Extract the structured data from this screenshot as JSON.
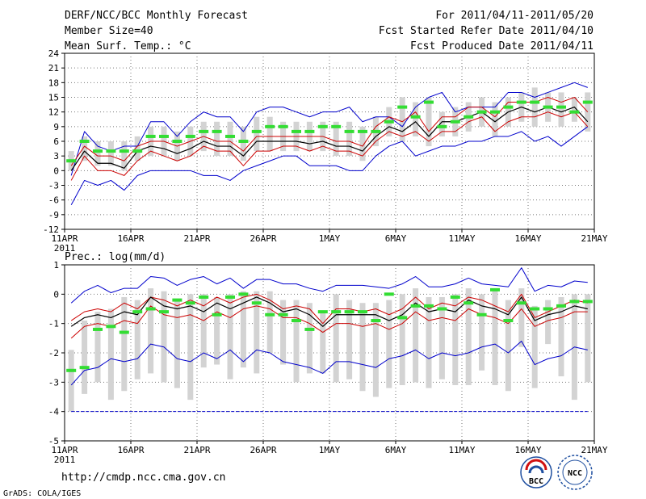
{
  "header": {
    "title": "DERF/NCC/BCC Monthly Forecast",
    "member_size": "Member Size=40",
    "variable": "Mean Surf. Temp.: °C",
    "period": "For 2011/04/11-2011/05/20",
    "started": "Fcst Started Refer Date 2011/04/10",
    "produced": "Fcst Produced Date 2011/04/11"
  },
  "footer": {
    "url": "http://cmdp.ncc.cma.gov.cn",
    "credit": "GrADS: COLA/IGES",
    "logo_bcc": "BCC",
    "logo_ncc": "NCC"
  },
  "colors": {
    "envelope": "#0000cc",
    "spread": "#cc0000",
    "mean": "#000000",
    "clim": "#33dd33",
    "box": "#d3d3d3"
  },
  "x_ticks": [
    "11APR",
    "16APR",
    "21APR",
    "26APR",
    "1MAY",
    "6MAY",
    "11MAY",
    "16MAY",
    "21MAY"
  ],
  "x_year": "2011",
  "chart_data": [
    {
      "type": "line",
      "title": "Mean Surf. Temp.: °C",
      "ylim": [
        -12,
        24
      ],
      "yticks": [
        -12,
        -9,
        -6,
        -3,
        0,
        3,
        6,
        9,
        12,
        15,
        18,
        21,
        24
      ],
      "ytick_labels": [
        "-12",
        "-9",
        "-6",
        "-3",
        "0",
        "3",
        "6",
        "9",
        "12",
        "15",
        "18",
        "21",
        "24"
      ],
      "days": 40,
      "series": [
        {
          "name": "max",
          "values": [
            -1,
            8,
            5,
            4,
            5,
            5,
            10,
            10,
            7,
            10,
            12,
            11,
            11,
            8,
            12,
            13,
            13,
            12,
            11,
            12,
            12,
            13,
            10,
            11,
            11,
            9,
            13,
            15,
            16,
            12,
            13,
            13,
            13,
            16,
            16,
            15,
            16,
            17,
            18,
            17
          ]
        },
        {
          "name": "upper",
          "values": [
            1,
            5,
            3,
            3,
            2,
            5,
            6,
            6,
            5,
            6,
            7,
            6,
            6,
            4,
            7,
            7,
            7,
            7,
            7,
            7,
            6,
            6,
            5,
            9,
            11,
            10,
            12,
            8,
            11,
            11,
            13,
            13,
            11,
            14,
            14,
            14,
            15,
            14,
            15,
            12
          ]
        },
        {
          "name": "mean",
          "values": [
            0,
            4,
            1.5,
            1.5,
            0.5,
            4,
            5,
            4.5,
            3.5,
            4.5,
            6,
            5,
            5,
            3,
            6,
            6,
            6,
            6,
            5.5,
            6,
            5,
            5,
            4,
            7,
            9,
            8,
            10,
            7,
            10,
            10,
            11,
            12,
            10,
            12,
            13,
            12,
            13,
            12,
            13,
            10
          ]
        },
        {
          "name": "lower",
          "values": [
            -2,
            3,
            0,
            0,
            -1,
            2,
            4,
            3,
            2,
            3,
            5,
            4,
            4,
            1,
            4,
            4,
            5,
            5,
            4,
            5,
            4,
            4,
            3,
            6,
            8,
            7,
            8,
            6,
            8,
            8,
            10,
            11,
            8,
            10,
            11,
            11,
            12,
            11,
            12,
            9
          ]
        },
        {
          "name": "min",
          "values": [
            -7,
            -2,
            -3,
            -2,
            -4,
            -1,
            0,
            0,
            0,
            0,
            -1,
            -1,
            -2,
            0,
            1,
            2,
            3,
            3,
            1,
            1,
            1,
            0,
            0,
            3,
            5,
            6,
            3,
            4,
            5,
            5,
            6,
            6,
            7,
            7,
            8,
            6,
            7,
            5,
            7,
            9
          ]
        },
        {
          "name": "clim",
          "values": [
            2,
            6,
            4,
            4,
            4,
            4,
            7,
            7,
            6,
            7,
            8,
            8,
            7,
            6,
            8,
            9,
            9,
            8,
            8,
            9,
            9,
            8,
            8,
            8,
            10,
            13,
            11,
            14,
            9,
            10,
            11,
            12,
            12,
            13,
            14,
            14,
            13,
            13,
            12,
            14
          ]
        },
        {
          "name": "box_top",
          "values": [
            4,
            7,
            6,
            6,
            6,
            7,
            9,
            9,
            8,
            9,
            10,
            10,
            10,
            9,
            11,
            11,
            10,
            10,
            10,
            10,
            10,
            10,
            9,
            11,
            13,
            15,
            14,
            15,
            12,
            13,
            14,
            15,
            14,
            15,
            16,
            17,
            16,
            16,
            15,
            16
          ]
        },
        {
          "name": "box_bottom",
          "values": [
            0,
            2,
            1,
            1,
            0,
            2,
            3,
            3,
            2,
            3,
            4,
            3,
            3,
            2,
            4,
            4,
            4,
            4,
            4,
            4,
            3,
            3,
            2,
            5,
            7,
            6,
            7,
            5,
            7,
            7,
            8,
            9,
            7,
            9,
            10,
            9,
            10,
            9,
            10,
            8
          ]
        }
      ]
    },
    {
      "type": "line",
      "title": "Prec.: log(mm/d)",
      "ylim": [
        -5,
        1
      ],
      "yticks": [
        -5,
        -4,
        -3,
        -2,
        -1,
        0,
        1
      ],
      "ytick_labels": [
        "-5",
        "-4",
        "-3",
        "-2",
        "-1",
        "0",
        "1"
      ],
      "days": 40,
      "series": [
        {
          "name": "max",
          "values": [
            -0.3,
            0.1,
            0.3,
            0.05,
            0.2,
            0.2,
            0.6,
            0.55,
            0.3,
            0.5,
            0.6,
            0.35,
            0.55,
            0.2,
            0.5,
            0.5,
            0.35,
            0.35,
            0.2,
            0.1,
            0.3,
            0.3,
            0.3,
            0.25,
            0.2,
            0.35,
            0.6,
            0.25,
            0.25,
            0.35,
            0.55,
            0.35,
            0.3,
            0.25,
            0.9,
            0.1,
            0.3,
            0.25,
            0.45,
            0.4
          ]
        },
        {
          "name": "upper",
          "values": [
            -0.9,
            -0.6,
            -0.5,
            -0.6,
            -0.3,
            -0.5,
            -0.1,
            -0.2,
            -0.4,
            -0.2,
            -0.4,
            -0.1,
            -0.3,
            -0.1,
            0.0,
            -0.2,
            -0.5,
            -0.4,
            -0.5,
            -1.0,
            -0.5,
            -0.5,
            -0.6,
            -0.5,
            -0.7,
            -0.5,
            -0.1,
            -0.5,
            -0.3,
            -0.4,
            -0.1,
            -0.2,
            -0.4,
            -0.6,
            0.0,
            -0.8,
            -0.6,
            -0.4,
            -0.2,
            -0.3
          ]
        },
        {
          "name": "mean",
          "values": [
            -1.1,
            -0.8,
            -0.7,
            -0.8,
            -0.6,
            -0.7,
            -0.1,
            -0.4,
            -0.5,
            -0.4,
            -0.6,
            -0.3,
            -0.5,
            -0.3,
            -0.1,
            -0.3,
            -0.6,
            -0.5,
            -0.7,
            -1.1,
            -0.7,
            -0.7,
            -0.7,
            -0.7,
            -0.9,
            -0.7,
            -0.3,
            -0.6,
            -0.5,
            -0.6,
            -0.2,
            -0.4,
            -0.5,
            -0.7,
            -0.1,
            -0.9,
            -0.7,
            -0.6,
            -0.4,
            -0.5
          ]
        },
        {
          "name": "lower",
          "values": [
            -1.5,
            -1.1,
            -1.0,
            -1.1,
            -0.9,
            -1.0,
            -0.4,
            -0.7,
            -0.8,
            -0.7,
            -0.9,
            -0.6,
            -0.8,
            -0.5,
            -0.4,
            -0.5,
            -0.8,
            -0.8,
            -1.0,
            -1.3,
            -1.0,
            -1.0,
            -1.1,
            -1.0,
            -1.2,
            -1.0,
            -0.6,
            -0.9,
            -0.8,
            -0.9,
            -0.5,
            -0.7,
            -0.8,
            -1.0,
            -0.5,
            -1.1,
            -0.9,
            -0.8,
            -0.6,
            -0.6
          ]
        },
        {
          "name": "min",
          "values": [
            -3.1,
            -2.6,
            -2.5,
            -2.2,
            -2.3,
            -2.2,
            -1.7,
            -1.8,
            -2.2,
            -2.3,
            -2.0,
            -2.2,
            -1.9,
            -2.3,
            -1.9,
            -2.0,
            -2.3,
            -2.4,
            -2.5,
            -2.7,
            -2.3,
            -2.3,
            -2.4,
            -2.5,
            -2.2,
            -2.1,
            -1.9,
            -2.2,
            -2.0,
            -2.1,
            -2.0,
            -1.8,
            -1.7,
            -2.0,
            -1.6,
            -2.4,
            -2.2,
            -2.1,
            -1.8,
            -1.9
          ]
        },
        {
          "name": "clim",
          "values": [
            -2.6,
            -2.5,
            -1.2,
            -1.1,
            -1.3,
            -0.6,
            -0.5,
            -0.6,
            -0.2,
            -0.3,
            -0.1,
            -0.7,
            -0.1,
            0.0,
            -0.3,
            -0.7,
            -0.7,
            -0.9,
            -1.2,
            -0.6,
            -0.6,
            -0.6,
            -0.6,
            -0.9,
            0.0,
            -0.8,
            -0.4,
            -0.4,
            -0.5,
            -0.1,
            -0.3,
            -0.7,
            0.15,
            -0.9,
            -0.3,
            -0.5,
            -0.5,
            -0.4,
            -0.25,
            -0.25
          ]
        },
        {
          "name": "box_top",
          "values": [
            -1.9,
            -0.9,
            -0.6,
            -0.5,
            -0.1,
            -0.2,
            0.2,
            0.1,
            -0.2,
            0.0,
            0.0,
            -0.1,
            0.0,
            0.1,
            0.1,
            0.1,
            -0.2,
            -0.2,
            -0.3,
            -0.6,
            0.0,
            -0.2,
            -0.3,
            -0.3,
            -0.2,
            0.0,
            0.2,
            -0.1,
            -0.1,
            0.0,
            0.2,
            0.0,
            0.2,
            -0.2,
            0.2,
            -0.4,
            -0.2,
            -0.1,
            0.0,
            0.0
          ]
        },
        {
          "name": "box_bottom",
          "values": [
            -4.0,
            -3.4,
            -3.0,
            -3.6,
            -3.3,
            -2.9,
            -2.7,
            -3.0,
            -3.2,
            -3.6,
            -2.5,
            -2.4,
            -2.9,
            -2.5,
            -2.7,
            -2.0,
            -2.4,
            -3.0,
            -2.7,
            -2.7,
            -3.0,
            -2.9,
            -3.3,
            -3.5,
            -3.2,
            -3.1,
            -3.0,
            -3.2,
            -2.9,
            -3.1,
            -3.1,
            -2.6,
            -3.1,
            -3.3,
            -1.8,
            -3.2,
            -1.7,
            -2.8,
            -3.6,
            -3.0
          ]
        },
        {
          "name": "floor",
          "values": [
            -4,
            -4,
            -4,
            -4,
            -4,
            -4,
            -4,
            -4,
            -4,
            -4,
            -4,
            -4,
            -4,
            -4,
            -4,
            -4,
            -4,
            -4,
            -4,
            -4,
            -4,
            -4,
            -4,
            -4,
            -4,
            -4,
            -4,
            -4,
            -4,
            -4,
            -4,
            -4,
            -4,
            -4,
            -4,
            -4,
            -4,
            -4,
            -4,
            -4
          ]
        }
      ]
    }
  ]
}
